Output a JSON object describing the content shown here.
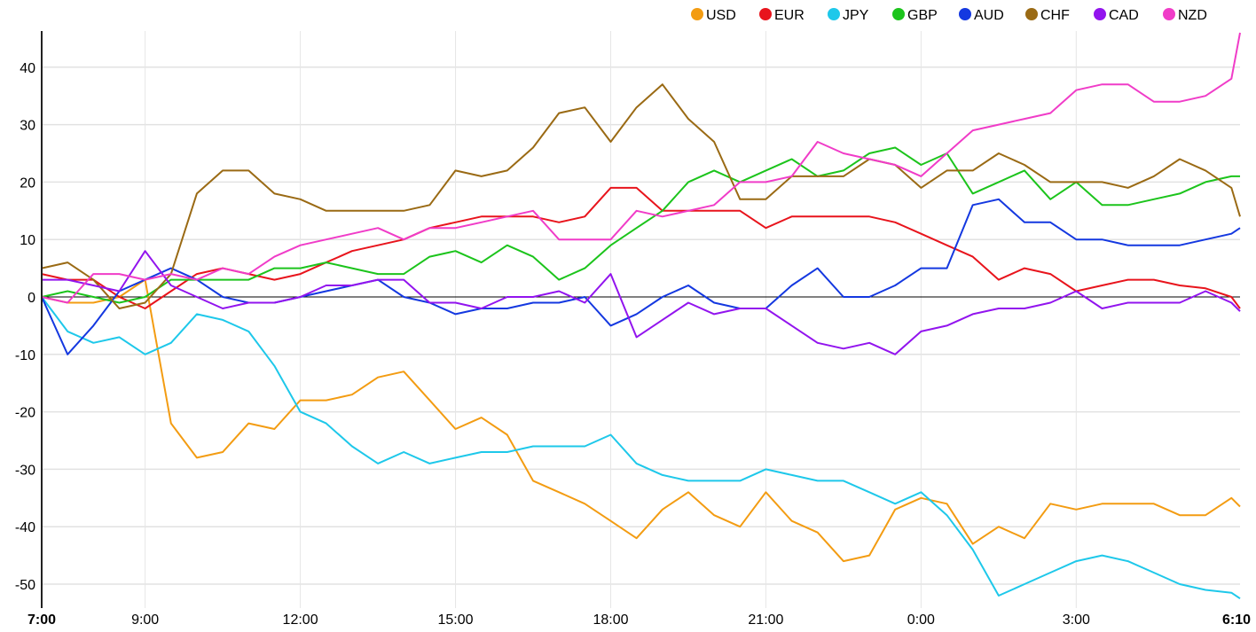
{
  "chart_data": {
    "type": "line",
    "title": "",
    "xlabel": "",
    "ylabel": "",
    "x_unit": "hours since 7:00",
    "xlim": [
      0,
      23.1667
    ],
    "ylim": [
      -54,
      46.5
    ],
    "grid": true,
    "legend_position": "top-right",
    "yticks": [
      40,
      30,
      20,
      10,
      0,
      -10,
      -20,
      -30,
      -40,
      -50
    ],
    "xticks": [
      {
        "h": 0,
        "label": "7:00",
        "bold": true
      },
      {
        "h": 2,
        "label": "9:00"
      },
      {
        "h": 5,
        "label": "12:00"
      },
      {
        "h": 8,
        "label": "15:00"
      },
      {
        "h": 11,
        "label": "18:00"
      },
      {
        "h": 14,
        "label": "21:00"
      },
      {
        "h": 17,
        "label": "0:00"
      },
      {
        "h": 20,
        "label": "3:00"
      },
      {
        "h": 23.1667,
        "label": "6:10",
        "bold": true
      }
    ],
    "x": [
      0,
      0.5,
      1,
      1.5,
      2,
      2.5,
      3,
      3.5,
      4,
      4.5,
      5,
      5.5,
      6,
      6.5,
      7,
      7.5,
      8,
      8.5,
      9,
      9.5,
      10,
      10.5,
      11,
      11.5,
      12,
      12.5,
      13,
      13.5,
      14,
      14.5,
      15,
      15.5,
      16,
      16.5,
      17,
      17.5,
      18,
      18.5,
      19,
      19.5,
      20,
      20.5,
      21,
      21.5,
      22,
      22.5,
      23,
      23.1667
    ],
    "series": [
      {
        "name": "USD",
        "color": "#f39c12",
        "values": [
          0,
          -1,
          -1,
          0,
          3,
          -22,
          -28,
          -27,
          -22,
          -23,
          -18,
          -18,
          -17,
          -14,
          -13,
          -18,
          -23,
          -21,
          -24,
          -32,
          -34,
          -36,
          -39,
          -42,
          -37,
          -34,
          -38,
          -40,
          -34,
          -39,
          -41,
          -46,
          -45,
          -37,
          -35,
          -36,
          -43,
          -40,
          -42,
          -36,
          -37,
          -36,
          -36,
          -36,
          -38,
          -38,
          -35,
          -36.5
        ]
      },
      {
        "name": "EUR",
        "color": "#e8141c",
        "values": [
          4,
          3,
          3,
          0,
          -2,
          1,
          4,
          5,
          4,
          3,
          4,
          6,
          8,
          9,
          10,
          12,
          13,
          14,
          14,
          14,
          13,
          14,
          19,
          19,
          15,
          15,
          15,
          15,
          12,
          14,
          14,
          14,
          14,
          13,
          11,
          9,
          7,
          3,
          5,
          4,
          1,
          2,
          3,
          3,
          2,
          1.5,
          0,
          -2
        ]
      },
      {
        "name": "JPY",
        "color": "#1ec8ea",
        "values": [
          0,
          -6,
          -8,
          -7,
          -10,
          -8,
          -3,
          -4,
          -6,
          -12,
          -20,
          -22,
          -26,
          -29,
          -27,
          -29,
          -28,
          -27,
          -27,
          -26,
          -26,
          -26,
          -24,
          -29,
          -31,
          -32,
          -32,
          -32,
          -30,
          -31,
          -32,
          -32,
          -34,
          -36,
          -34,
          -38,
          -44,
          -52,
          -50,
          -48,
          -46,
          -45,
          -46,
          -48,
          -50,
          -51,
          -51.5,
          -52.5
        ]
      },
      {
        "name": "GBP",
        "color": "#1cc41c",
        "values": [
          0,
          1,
          0,
          -1,
          0,
          3,
          3,
          3,
          3,
          5,
          5,
          6,
          5,
          4,
          4,
          7,
          8,
          6,
          9,
          7,
          3,
          5,
          9,
          12,
          15,
          20,
          22,
          20,
          22,
          24,
          21,
          22,
          25,
          26,
          23,
          25,
          18,
          20,
          22,
          17,
          20,
          16,
          16,
          17,
          18,
          20,
          21,
          21
        ]
      },
      {
        "name": "AUD",
        "color": "#1438e0",
        "values": [
          0,
          -10,
          -5,
          1,
          3,
          5,
          3,
          0,
          -1,
          -1,
          0,
          1,
          2,
          3,
          0,
          -1,
          -3,
          -2,
          -2,
          -1,
          -1,
          0,
          -5,
          -3,
          0,
          2,
          -1,
          -2,
          -2,
          2,
          5,
          0,
          0,
          2,
          5,
          5,
          16,
          17,
          13,
          13,
          10,
          10,
          9,
          9,
          9,
          10,
          11,
          12
        ]
      },
      {
        "name": "CHF",
        "color": "#9a6a14",
        "values": [
          5,
          6,
          3,
          -2,
          -1,
          4,
          18,
          22,
          22,
          18,
          17,
          15,
          15,
          15,
          15,
          16,
          22,
          21,
          22,
          26,
          32,
          33,
          27,
          33,
          37,
          31,
          27,
          17,
          17,
          21,
          21,
          21,
          24,
          23,
          19,
          22,
          22,
          25,
          23,
          20,
          20,
          20,
          19,
          21,
          24,
          22,
          19,
          14
        ]
      },
      {
        "name": "CAD",
        "color": "#9214ee",
        "values": [
          3,
          3,
          2,
          1,
          8,
          2,
          0,
          -2,
          -1,
          -1,
          0,
          2,
          2,
          3,
          3,
          -1,
          -1,
          -2,
          0,
          0,
          1,
          -1,
          4,
          -7,
          -4,
          -1,
          -3,
          -2,
          -2,
          -5,
          -8,
          -9,
          -8,
          -10,
          -6,
          -5,
          -3,
          -2,
          -2,
          -1,
          1,
          -2,
          -1,
          -1,
          -1,
          1,
          -1,
          -2.5
        ]
      },
      {
        "name": "NZD",
        "color": "#f03cc8",
        "values": [
          0,
          -1,
          4,
          4,
          3,
          4,
          3,
          5,
          4,
          7,
          9,
          10,
          11,
          12,
          10,
          12,
          12,
          13,
          14,
          15,
          10,
          10,
          10,
          15,
          14,
          15,
          16,
          20,
          20,
          21,
          27,
          25,
          24,
          23,
          21,
          25,
          29,
          30,
          31,
          32,
          36,
          37,
          37,
          34,
          34,
          35,
          38,
          46
        ]
      }
    ]
  }
}
